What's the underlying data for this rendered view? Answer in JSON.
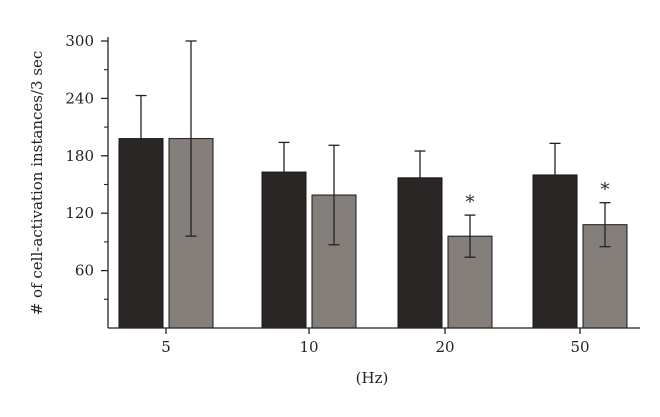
{
  "chart_data": {
    "type": "bar",
    "title": "",
    "xlabel": "(Hz)",
    "ylabel": "# of cell-activation instances/3 sec",
    "ylim": [
      0,
      300
    ],
    "yticks": [
      60,
      120,
      180,
      240,
      300
    ],
    "ytick_labels": [
      "60",
      "120",
      "180",
      "240",
      "300"
    ],
    "categories": [
      "5",
      "10",
      "20",
      "50"
    ],
    "grid": false,
    "legend": "none",
    "series": [
      {
        "color": "#2b2626",
        "values": [
          198,
          163,
          157,
          160
        ],
        "errors": [
          45,
          31,
          28,
          33
        ],
        "error_bar_direction": "up"
      },
      {
        "color": "#857f7c",
        "values": [
          198,
          139,
          96,
          108
        ],
        "errors": [
          102,
          52,
          22,
          23
        ],
        "error_bar_direction": "both"
      }
    ],
    "annotations": [
      {
        "category": "20",
        "series_index": 1,
        "text": "*"
      },
      {
        "category": "50",
        "series_index": 1,
        "text": "*"
      }
    ]
  }
}
